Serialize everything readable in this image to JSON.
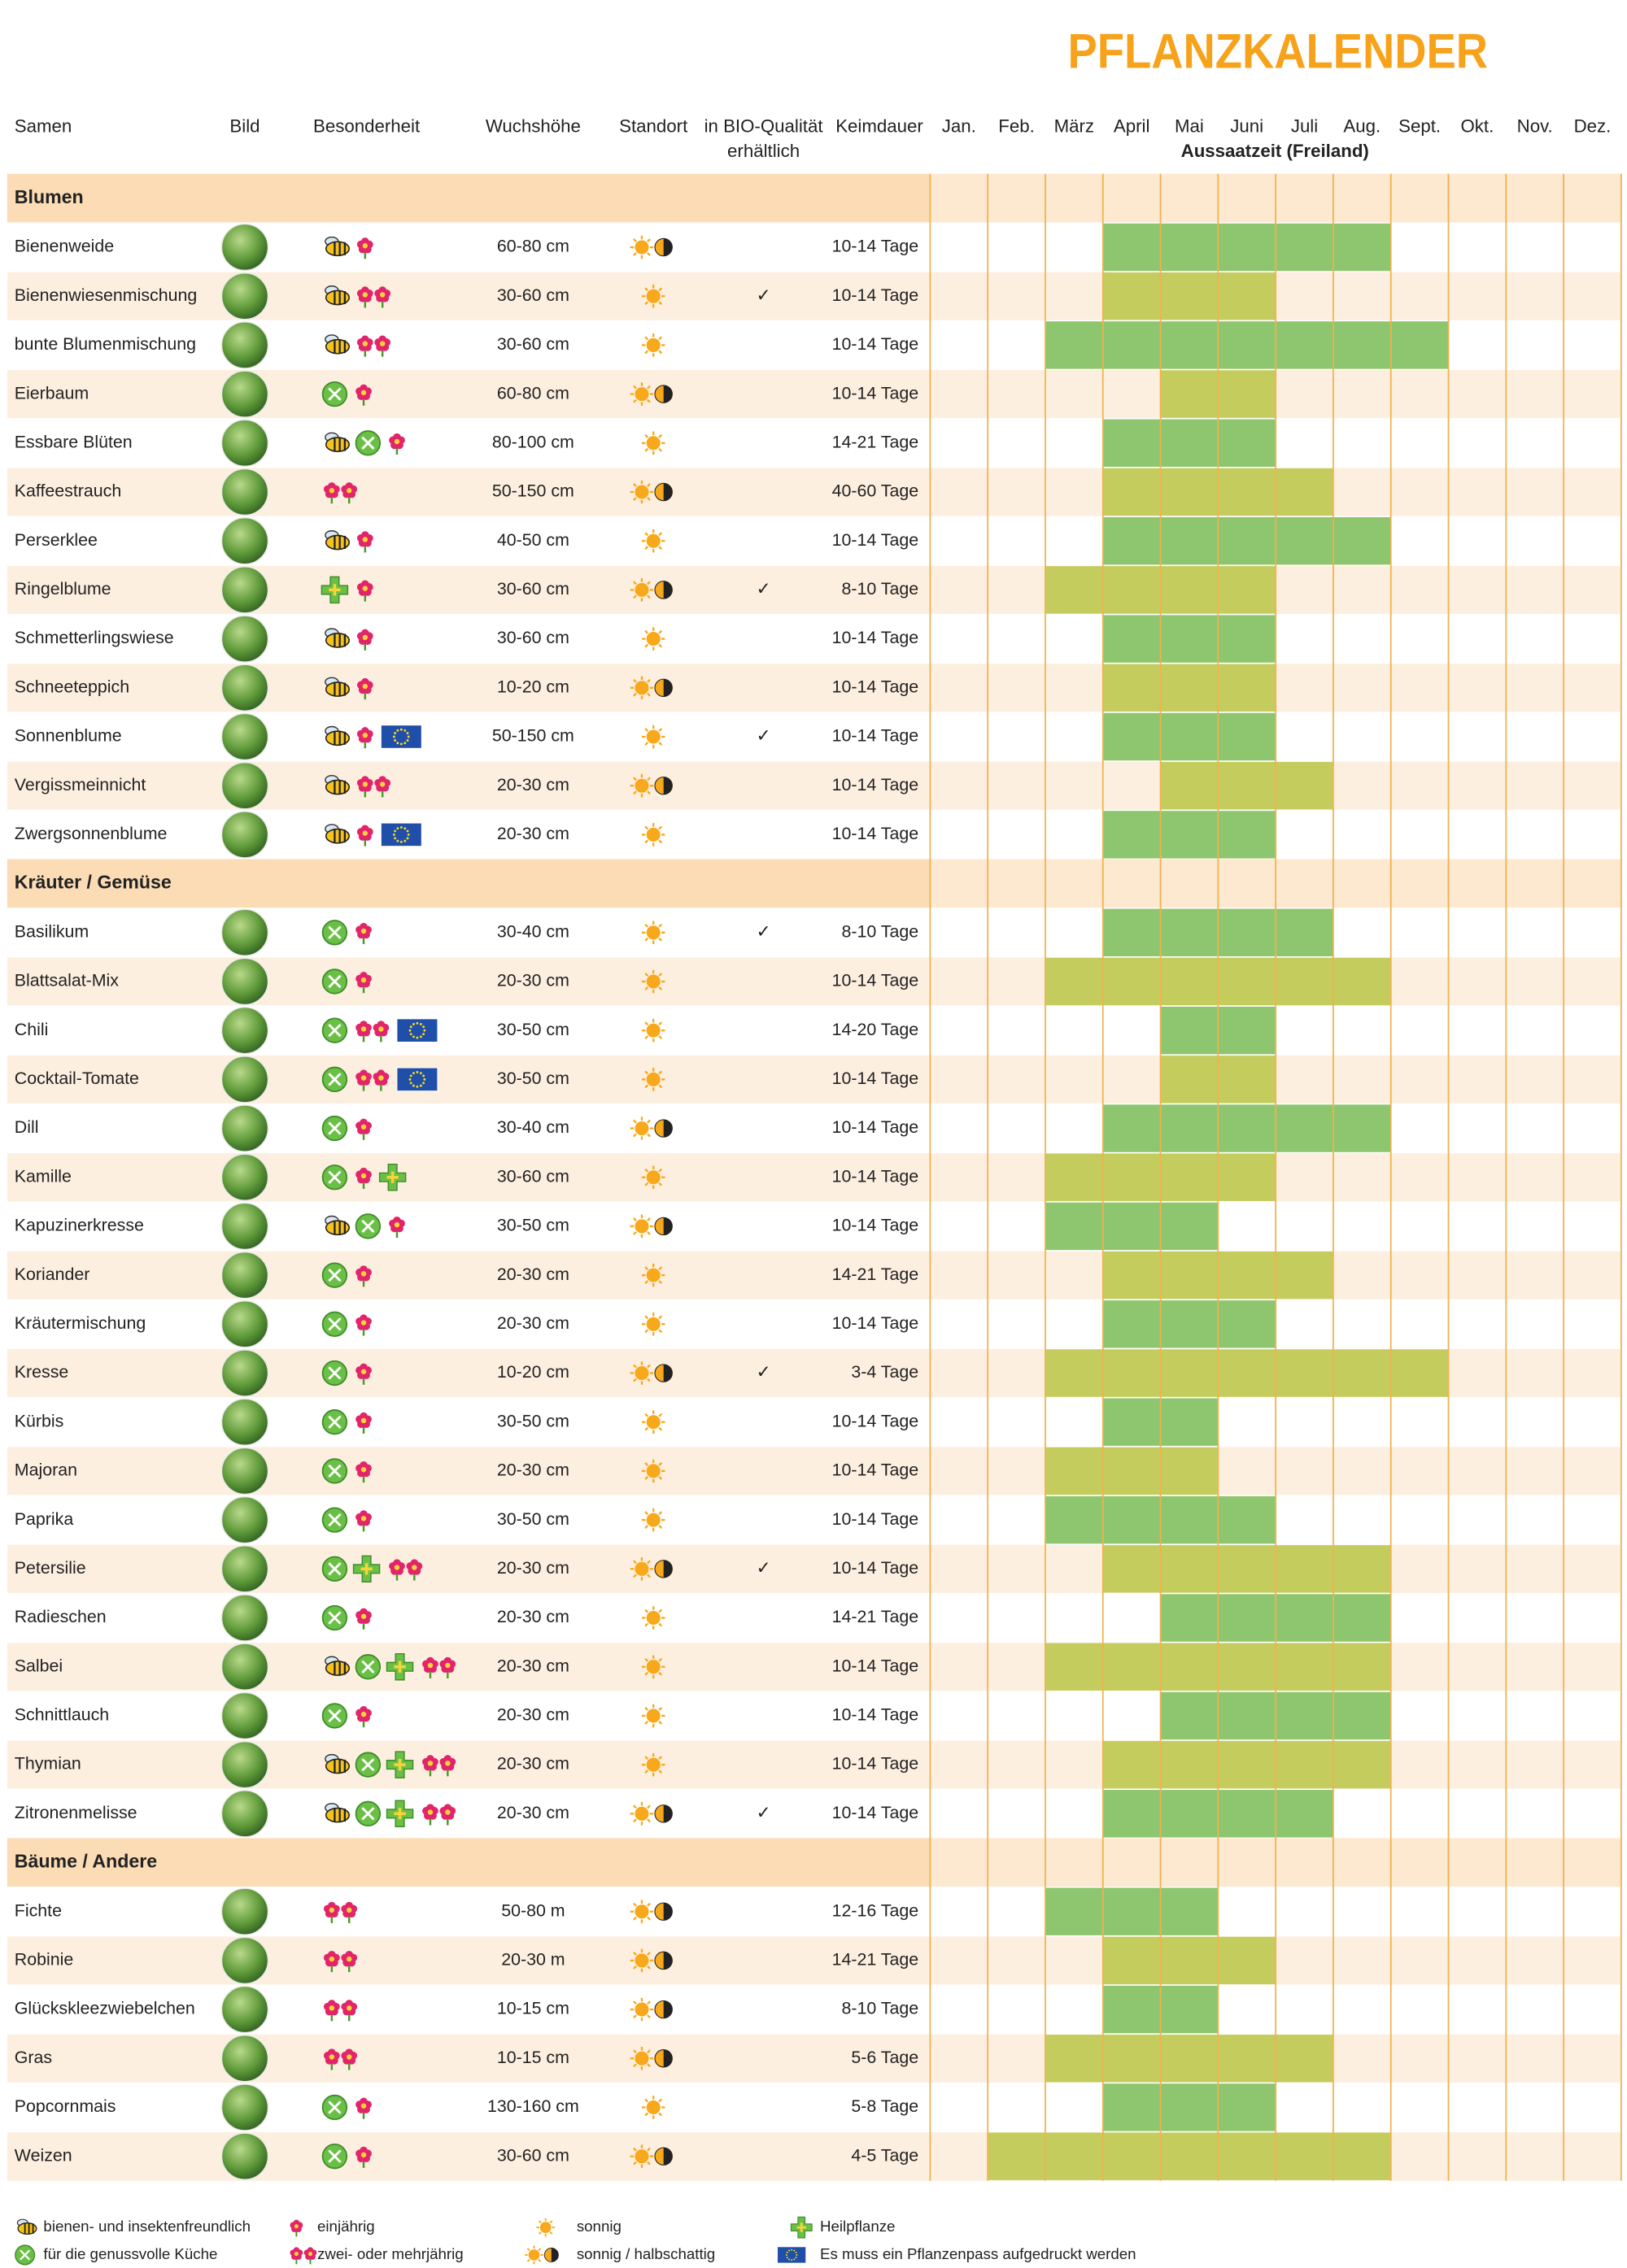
{
  "title": "PFLANZKALENDER",
  "columns": {
    "seed": "Samen",
    "image": "Bild",
    "feature": "Besonderheit",
    "height": "Wuchshöhe",
    "location": "Standort",
    "bio": [
      "in BIO-Qualität",
      "erhältlich"
    ],
    "germination": "Keimdauer"
  },
  "months": [
    "Jan.",
    "Feb.",
    "März",
    "April",
    "Mai",
    "Juni",
    "Juli",
    "Aug.",
    "Sept.",
    "Okt.",
    "Nov.",
    "Dez."
  ],
  "sowing_label": "Aussaatzeit (Freiland)",
  "bio_mark": "✓",
  "sections": [
    {
      "title": "Blumen",
      "rows": [
        {
          "name": "Bienenweide",
          "icons": [
            "bee",
            "annual"
          ],
          "height": "60-80 cm",
          "location": "sun-half",
          "bio": false,
          "germination": "10-14 Tage",
          "sow": [
            4,
            8
          ],
          "sow_color": "#8dc66e"
        },
        {
          "name": "Bienenwiesenmischung",
          "icons": [
            "bee",
            "perennial"
          ],
          "height": "30-60 cm",
          "location": "sun",
          "bio": true,
          "germination": "10-14 Tage",
          "sow": [
            4,
            6
          ],
          "sow_color": "#c5cc5e"
        },
        {
          "name": "bunte Blumenmischung",
          "icons": [
            "bee",
            "perennial"
          ],
          "height": "30-60 cm",
          "location": "sun",
          "bio": false,
          "germination": "10-14 Tage",
          "sow": [
            3,
            9
          ],
          "sow_color": "#8dc66e"
        },
        {
          "name": "Eierbaum",
          "icons": [
            "kitchen",
            "annual"
          ],
          "height": "60-80 cm",
          "location": "sun-half",
          "bio": false,
          "germination": "10-14 Tage",
          "sow": [
            5,
            6
          ],
          "sow_color": "#c5cc5e"
        },
        {
          "name": "Essbare Blüten",
          "icons": [
            "bee",
            "kitchen",
            "annual"
          ],
          "height": "80-100 cm",
          "location": "sun",
          "bio": false,
          "germination": "14-21 Tage",
          "sow": [
            4,
            6
          ],
          "sow_color": "#8dc66e"
        },
        {
          "name": "Kaffeestrauch",
          "icons": [
            "perennial"
          ],
          "height": "50-150 cm",
          "location": "sun-half",
          "bio": false,
          "germination": "40-60 Tage",
          "sow": [
            4,
            7
          ],
          "sow_color": "#c5cc5e"
        },
        {
          "name": "Perserklee",
          "icons": [
            "bee",
            "annual"
          ],
          "height": "40-50 cm",
          "location": "sun",
          "bio": false,
          "germination": "10-14 Tage",
          "sow": [
            4,
            8
          ],
          "sow_color": "#8dc66e"
        },
        {
          "name": "Ringelblume",
          "icons": [
            "heal",
            "annual"
          ],
          "height": "30-60 cm",
          "location": "sun-half",
          "bio": true,
          "germination": "8-10 Tage",
          "sow": [
            3,
            6
          ],
          "sow_color": "#c5cc5e"
        },
        {
          "name": "Schmetterlingswiese",
          "icons": [
            "bee",
            "annual"
          ],
          "height": "30-60 cm",
          "location": "sun",
          "bio": false,
          "germination": "10-14 Tage",
          "sow": [
            4,
            6
          ],
          "sow_color": "#8dc66e"
        },
        {
          "name": "Schneeteppich",
          "icons": [
            "bee",
            "annual"
          ],
          "height": "10-20 cm",
          "location": "sun-half",
          "bio": false,
          "germination": "10-14 Tage",
          "sow": [
            4,
            6
          ],
          "sow_color": "#c5cc5e"
        },
        {
          "name": "Sonnenblume",
          "icons": [
            "bee",
            "annual",
            "eu"
          ],
          "height": "50-150 cm",
          "location": "sun",
          "bio": true,
          "germination": "10-14 Tage",
          "sow": [
            4,
            6
          ],
          "sow_color": "#8dc66e"
        },
        {
          "name": "Vergissmeinnicht",
          "icons": [
            "bee",
            "perennial"
          ],
          "height": "20-30 cm",
          "location": "sun-half",
          "bio": false,
          "germination": "10-14 Tage",
          "sow": [
            5,
            7
          ],
          "sow_color": "#c5cc5e"
        },
        {
          "name": "Zwergsonnenblume",
          "icons": [
            "bee",
            "annual",
            "eu"
          ],
          "height": "20-30 cm",
          "location": "sun",
          "bio": false,
          "germination": "10-14 Tage",
          "sow": [
            4,
            6
          ],
          "sow_color": "#8dc66e"
        }
      ]
    },
    {
      "title": "Kräuter / Gemüse",
      "rows": [
        {
          "name": "Basilikum",
          "icons": [
            "kitchen",
            "annual"
          ],
          "height": "30-40 cm",
          "location": "sun",
          "bio": true,
          "germination": "8-10 Tage",
          "sow": [
            4,
            7
          ],
          "sow_color": "#8dc66e"
        },
        {
          "name": "Blattsalat-Mix",
          "icons": [
            "kitchen",
            "annual"
          ],
          "height": "20-30 cm",
          "location": "sun",
          "bio": false,
          "germination": "10-14 Tage",
          "sow": [
            3,
            8
          ],
          "sow_color": "#c5cc5e"
        },
        {
          "name": "Chili",
          "icons": [
            "kitchen",
            "perennial",
            "eu"
          ],
          "height": "30-50 cm",
          "location": "sun",
          "bio": false,
          "germination": "14-20 Tage",
          "sow": [
            5,
            6
          ],
          "sow_color": "#8dc66e"
        },
        {
          "name": "Cocktail-Tomate",
          "icons": [
            "kitchen",
            "perennial",
            "eu"
          ],
          "height": "30-50 cm",
          "location": "sun",
          "bio": false,
          "germination": "10-14 Tage",
          "sow": [
            5,
            6
          ],
          "sow_color": "#c5cc5e"
        },
        {
          "name": "Dill",
          "icons": [
            "kitchen",
            "annual"
          ],
          "height": "30-40 cm",
          "location": "sun-half",
          "bio": false,
          "germination": "10-14 Tage",
          "sow": [
            4,
            8
          ],
          "sow_color": "#8dc66e"
        },
        {
          "name": "Kamille",
          "icons": [
            "kitchen",
            "annual",
            "heal"
          ],
          "height": "30-60 cm",
          "location": "sun",
          "bio": false,
          "germination": "10-14 Tage",
          "sow": [
            3,
            6
          ],
          "sow_color": "#c5cc5e"
        },
        {
          "name": "Kapuzinerkresse",
          "icons": [
            "bee",
            "kitchen",
            "annual"
          ],
          "height": "30-50 cm",
          "location": "sun-half",
          "bio": false,
          "germination": "10-14 Tage",
          "sow": [
            3,
            5
          ],
          "sow_color": "#8dc66e"
        },
        {
          "name": "Koriander",
          "icons": [
            "kitchen",
            "annual"
          ],
          "height": "20-30 cm",
          "location": "sun",
          "bio": false,
          "germination": "14-21 Tage",
          "sow": [
            4,
            7
          ],
          "sow_color": "#c5cc5e"
        },
        {
          "name": "Kräutermischung",
          "icons": [
            "kitchen",
            "annual"
          ],
          "height": "20-30 cm",
          "location": "sun",
          "bio": false,
          "germination": "10-14 Tage",
          "sow": [
            4,
            6
          ],
          "sow_color": "#8dc66e"
        },
        {
          "name": "Kresse",
          "icons": [
            "kitchen",
            "annual"
          ],
          "height": "10-20 cm",
          "location": "sun-half",
          "bio": true,
          "germination": "3-4 Tage",
          "sow": [
            3,
            9
          ],
          "sow_color": "#c5cc5e"
        },
        {
          "name": "Kürbis",
          "icons": [
            "kitchen",
            "annual"
          ],
          "height": "30-50 cm",
          "location": "sun",
          "bio": false,
          "germination": "10-14 Tage",
          "sow": [
            4,
            5
          ],
          "sow_color": "#8dc66e"
        },
        {
          "name": "Majoran",
          "icons": [
            "kitchen",
            "annual"
          ],
          "height": "20-30 cm",
          "location": "sun",
          "bio": false,
          "germination": "10-14 Tage",
          "sow": [
            3,
            5
          ],
          "sow_color": "#c5cc5e"
        },
        {
          "name": "Paprika",
          "icons": [
            "kitchen",
            "annual"
          ],
          "height": "30-50 cm",
          "location": "sun",
          "bio": false,
          "germination": "10-14 Tage",
          "sow": [
            3,
            6
          ],
          "sow_color": "#8dc66e"
        },
        {
          "name": "Petersilie",
          "icons": [
            "kitchen",
            "heal",
            "perennial"
          ],
          "height": "20-30 cm",
          "location": "sun-half",
          "bio": true,
          "germination": "10-14 Tage",
          "sow": [
            4,
            8
          ],
          "sow_color": "#c5cc5e"
        },
        {
          "name": "Radieschen",
          "icons": [
            "kitchen",
            "annual"
          ],
          "height": "20-30 cm",
          "location": "sun",
          "bio": false,
          "germination": "14-21 Tage",
          "sow": [
            5,
            8
          ],
          "sow_color": "#8dc66e"
        },
        {
          "name": "Salbei",
          "icons": [
            "bee",
            "kitchen",
            "heal",
            "perennial"
          ],
          "height": "20-30 cm",
          "location": "sun",
          "bio": false,
          "germination": "10-14 Tage",
          "sow": [
            3,
            8
          ],
          "sow_color": "#c5cc5e"
        },
        {
          "name": "Schnittlauch",
          "icons": [
            "kitchen",
            "annual"
          ],
          "height": "20-30 cm",
          "location": "sun",
          "bio": false,
          "germination": "10-14 Tage",
          "sow": [
            5,
            8
          ],
          "sow_color": "#8dc66e"
        },
        {
          "name": "Thymian",
          "icons": [
            "bee",
            "kitchen",
            "heal",
            "perennial"
          ],
          "height": "20-30 cm",
          "location": "sun",
          "bio": false,
          "germination": "10-14 Tage",
          "sow": [
            4,
            8
          ],
          "sow_color": "#c5cc5e"
        },
        {
          "name": "Zitronenmelisse",
          "icons": [
            "bee",
            "kitchen",
            "heal",
            "perennial"
          ],
          "height": "20-30 cm",
          "location": "sun-half",
          "bio": true,
          "germination": "10-14 Tage",
          "sow": [
            4,
            7
          ],
          "sow_color": "#8dc66e"
        }
      ]
    },
    {
      "title": "Bäume / Andere",
      "rows": [
        {
          "name": "Fichte",
          "icons": [
            "perennial"
          ],
          "height": "50-80 m",
          "location": "sun-half",
          "bio": false,
          "germination": "12-16 Tage",
          "sow": [
            3,
            5
          ],
          "sow_color": "#8dc66e"
        },
        {
          "name": "Robinie",
          "icons": [
            "perennial"
          ],
          "height": "20-30 m",
          "location": "sun-half",
          "bio": false,
          "germination": "14-21 Tage",
          "sow": [
            4,
            6
          ],
          "sow_color": "#c5cc5e"
        },
        {
          "name": "Glückskleezwiebelchen",
          "icons": [
            "perennial"
          ],
          "height": "10-15 cm",
          "location": "sun-half",
          "bio": false,
          "germination": "8-10 Tage",
          "sow": [
            4,
            5
          ],
          "sow_color": "#8dc66e"
        },
        {
          "name": "Gras",
          "icons": [
            "perennial"
          ],
          "height": "10-15 cm",
          "location": "sun-half",
          "bio": false,
          "germination": "5-6 Tage",
          "sow": [
            3,
            7
          ],
          "sow_color": "#c5cc5e"
        },
        {
          "name": "Popcornmais",
          "icons": [
            "kitchen",
            "annual"
          ],
          "height": "130-160 cm",
          "location": "sun",
          "bio": false,
          "germination": "5-8 Tage",
          "sow": [
            4,
            6
          ],
          "sow_color": "#8dc66e"
        },
        {
          "name": "Weizen",
          "icons": [
            "kitchen",
            "annual"
          ],
          "height": "30-60 cm",
          "location": "sun-half",
          "bio": false,
          "germination": "4-5 Tage",
          "sow": [
            2,
            8
          ],
          "sow_color": "#c5cc5e"
        }
      ]
    }
  ],
  "legend": [
    {
      "icon": "bee",
      "label": "bienen- und insektenfreundlich"
    },
    {
      "icon": "kitchen",
      "label": "für die genussvolle Küche"
    },
    {
      "icon": "annual",
      "label": "einjährig"
    },
    {
      "icon": "perennial",
      "label": "zwei- oder mehrjährig"
    },
    {
      "icon": "sun",
      "label": "sonnig"
    },
    {
      "icon": "sun-half",
      "label": "sonnig / halbschattig"
    },
    {
      "icon": "heal",
      "label": "Heilpflanze"
    },
    {
      "icon": "eu",
      "label": "Es muss ein Pflanzenpass aufgedruckt werden"
    }
  ]
}
